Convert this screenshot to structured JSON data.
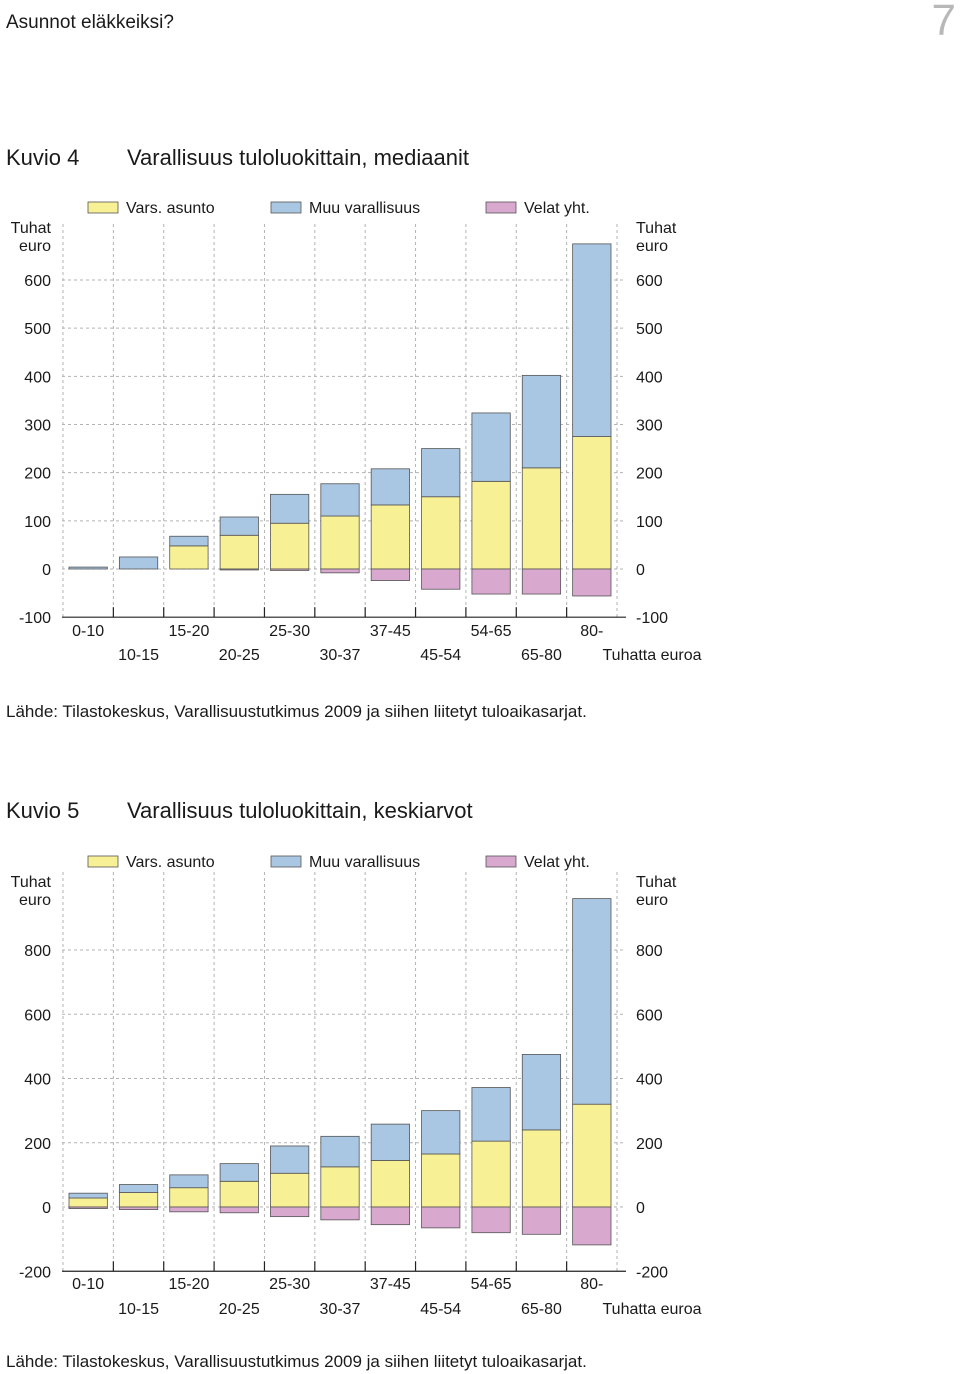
{
  "header": {
    "doc_title": "Asunnot eläkkeiksi?",
    "page_number": "7"
  },
  "figures": [
    {
      "label": "Kuvio 4",
      "title": "Varallisuus tuloluokittain, mediaanit",
      "source": "Lähde: Tilastokeskus, Varallisuustutkimus 2009 ja siihen liitetyt tuloaikasarjat."
    },
    {
      "label": "Kuvio 5",
      "title": "Varallisuus tuloluokittain, keskiarvot",
      "source": "Lähde: Tilastokeskus, Varallisuustutkimus 2009 ja siihen liitetyt tuloaikasarjat."
    }
  ],
  "colors": {
    "asunto": "#f8f095",
    "muu": "#a9c6e2",
    "velat": "#d8a8cf",
    "stroke": "#555555",
    "grid": "#b3b3b3"
  },
  "chart_data": [
    {
      "type": "bar",
      "stacked": true,
      "categories": [
        "0-10",
        "10-15",
        "15-20",
        "20-25",
        "25-30",
        "30-37",
        "37-45",
        "45-54",
        "54-65",
        "65-80",
        "80-"
      ],
      "category_rows": [
        [
          "0-10",
          "15-20",
          "25-30",
          "37-45",
          "54-65",
          "80-"
        ],
        [
          "10-15",
          "20-25",
          "30-37",
          "45-54",
          "65-80"
        ]
      ],
      "series": [
        {
          "name": "Vars. asunto",
          "values": [
            0,
            0,
            48,
            70,
            95,
            110,
            133,
            150,
            182,
            210,
            275
          ]
        },
        {
          "name": "Muu varallisuus",
          "values": [
            4,
            25,
            20,
            38,
            60,
            67,
            75,
            100,
            142,
            192,
            400
          ]
        },
        {
          "name": "Velat yht.",
          "values": [
            0,
            0,
            0,
            -2,
            -3,
            -8,
            -24,
            -42,
            -52,
            -52,
            -56
          ]
        }
      ],
      "ylabel": [
        "Tuhat",
        "euro"
      ],
      "xlabel": "Tuhatta euroa",
      "yticks": [
        -100,
        0,
        100,
        200,
        300,
        400,
        500,
        600
      ],
      "ylim": [
        -100,
        680
      ],
      "grid": true,
      "legend": "top"
    },
    {
      "type": "bar",
      "stacked": true,
      "categories": [
        "0-10",
        "10-15",
        "15-20",
        "20-25",
        "25-30",
        "30-37",
        "37-45",
        "45-54",
        "54-65",
        "65-80",
        "80-"
      ],
      "category_rows": [
        [
          "0-10",
          "15-20",
          "25-30",
          "37-45",
          "54-65",
          "80-"
        ],
        [
          "10-15",
          "20-25",
          "30-37",
          "45-54",
          "65-80"
        ]
      ],
      "series": [
        {
          "name": "Vars. asunto",
          "values": [
            28,
            45,
            60,
            80,
            105,
            125,
            145,
            165,
            205,
            240,
            320
          ]
        },
        {
          "name": "Muu varallisuus",
          "values": [
            15,
            25,
            40,
            55,
            85,
            95,
            113,
            135,
            167,
            235,
            640
          ]
        },
        {
          "name": "Velat yht.",
          "values": [
            -5,
            -8,
            -15,
            -18,
            -30,
            -40,
            -55,
            -65,
            -80,
            -85,
            -118
          ]
        }
      ],
      "ylabel": [
        "Tuhat",
        "euro"
      ],
      "xlabel": "Tuhatta euroa",
      "yticks": [
        -200,
        0,
        200,
        400,
        600,
        800
      ],
      "ylim": [
        -200,
        1000
      ],
      "grid": true,
      "legend": "top"
    }
  ]
}
